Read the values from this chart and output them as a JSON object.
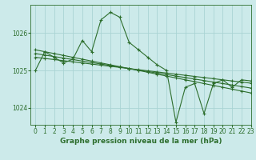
{
  "bg_color": "#cceaea",
  "line_color": "#2d6e2d",
  "grid_color": "#aad4d4",
  "xlabel": "Graphe pression niveau de la mer (hPa)",
  "ylim": [
    1023.55,
    1026.75
  ],
  "xlim": [
    -0.5,
    23
  ],
  "yticks": [
    1024,
    1025,
    1026
  ],
  "xticks": [
    0,
    1,
    2,
    3,
    4,
    5,
    6,
    7,
    8,
    9,
    10,
    11,
    12,
    13,
    14,
    15,
    16,
    17,
    18,
    19,
    20,
    21,
    22,
    23
  ],
  "line1_y": [
    1025.0,
    1025.5,
    1025.35,
    1025.2,
    1025.3,
    1025.8,
    1025.5,
    1026.35,
    1026.55,
    1026.42,
    1025.75,
    1025.55,
    1025.35,
    1025.15,
    1025.0,
    1023.62,
    1024.55,
    1024.65,
    1023.85,
    1024.65,
    1024.75,
    1024.55,
    1024.75,
    1024.72
  ],
  "line2_y": [
    1025.55,
    1025.5,
    1025.45,
    1025.4,
    1025.35,
    1025.3,
    1025.25,
    1025.2,
    1025.15,
    1025.1,
    1025.05,
    1025.0,
    1024.95,
    1024.9,
    1024.85,
    1024.8,
    1024.75,
    1024.7,
    1024.65,
    1024.6,
    1024.55,
    1024.5,
    1024.45,
    1024.4
  ],
  "line3_y": [
    1025.45,
    1025.41,
    1025.37,
    1025.33,
    1025.29,
    1025.25,
    1025.21,
    1025.17,
    1025.13,
    1025.09,
    1025.05,
    1025.01,
    1024.97,
    1024.93,
    1024.89,
    1024.85,
    1024.81,
    1024.77,
    1024.73,
    1024.69,
    1024.65,
    1024.61,
    1024.57,
    1024.53
  ],
  "line4_y": [
    1025.35,
    1025.32,
    1025.29,
    1025.26,
    1025.23,
    1025.2,
    1025.17,
    1025.14,
    1025.11,
    1025.08,
    1025.05,
    1025.02,
    1024.99,
    1024.96,
    1024.93,
    1024.9,
    1024.87,
    1024.84,
    1024.81,
    1024.78,
    1024.75,
    1024.72,
    1024.69,
    1024.66
  ],
  "marker_size": 3.0,
  "line_width": 0.8,
  "tick_fontsize": 5.5,
  "label_fontsize": 6.5
}
